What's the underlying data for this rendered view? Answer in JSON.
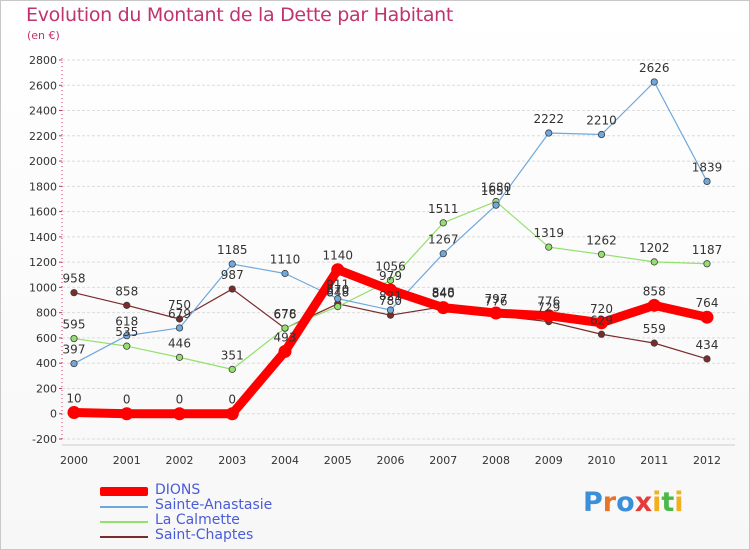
{
  "header": {
    "title": "Evolution du Montant de la Dette par Habitant",
    "subtitle": "(en €)"
  },
  "logo": {
    "letters": [
      "P",
      "r",
      "o",
      "x",
      "i",
      "t",
      "i"
    ],
    "colors": [
      "#3a8fd8",
      "#e8742a",
      "#3a8fd8",
      "#e53b3b",
      "#f2b01e",
      "#4db848",
      "#f2b01e"
    ]
  },
  "chart_data": {
    "type": "line",
    "title": "Evolution du Montant de la Dette par Habitant",
    "subtitle": "(en €)",
    "xlabel": "",
    "ylabel": "",
    "x": [
      "2000",
      "2001",
      "2002",
      "2003",
      "2004",
      "2005",
      "2006",
      "2007",
      "2008",
      "2009",
      "2010",
      "2011",
      "2012"
    ],
    "ylim": [
      -200,
      2800
    ],
    "yticks": [
      -200,
      0,
      200,
      400,
      600,
      800,
      1000,
      1200,
      1400,
      1600,
      1800,
      2000,
      2200,
      2400,
      2600,
      2800
    ],
    "grid": "horizontal",
    "legend_position": "bottom-left",
    "series": [
      {
        "name": "DIONS",
        "color": "#ff0000",
        "values": [
          10,
          0,
          0,
          0,
          493,
          1140,
          979,
          840,
          797,
          776,
          720,
          858,
          764
        ],
        "labels": [
          "10",
          "0",
          "0",
          "0",
          "493",
          "1140",
          "979",
          "840",
          "797",
          "776",
          "720",
          "858",
          "764"
        ]
      },
      {
        "name": "Sainte-Anastasie",
        "color": "#6fa8dc",
        "values": [
          397,
          618,
          679,
          1185,
          1110,
          911,
          821,
          1267,
          1651,
          2222,
          2210,
          2626,
          1839
        ],
        "labels": [
          "397",
          "618",
          "679",
          "1185",
          "1110",
          "911",
          "821",
          "1267",
          "1651",
          "2222",
          "2210",
          "2626",
          "1839"
        ]
      },
      {
        "name": "La Calmette",
        "color": "#93e06c",
        "values": [
          595,
          535,
          446,
          351,
          678,
          848,
          1056,
          1511,
          1680,
          1319,
          1262,
          1202,
          1187
        ],
        "labels": [
          "595",
          "535",
          "446",
          "351",
          "678",
          "848",
          "1056",
          "1511",
          "1680",
          "1319",
          "1262",
          "1202",
          "1187"
        ]
      },
      {
        "name": "Saint-Chaptes",
        "color": "#7a2c2c",
        "values": [
          958,
          858,
          750,
          987,
          676,
          870,
          780,
          848,
          776,
          729,
          629,
          559,
          434
        ],
        "labels": [
          "958",
          "858",
          "750",
          "987",
          "676",
          "870",
          "780",
          "848",
          "776",
          "729",
          "629",
          "559",
          "434"
        ]
      }
    ]
  }
}
